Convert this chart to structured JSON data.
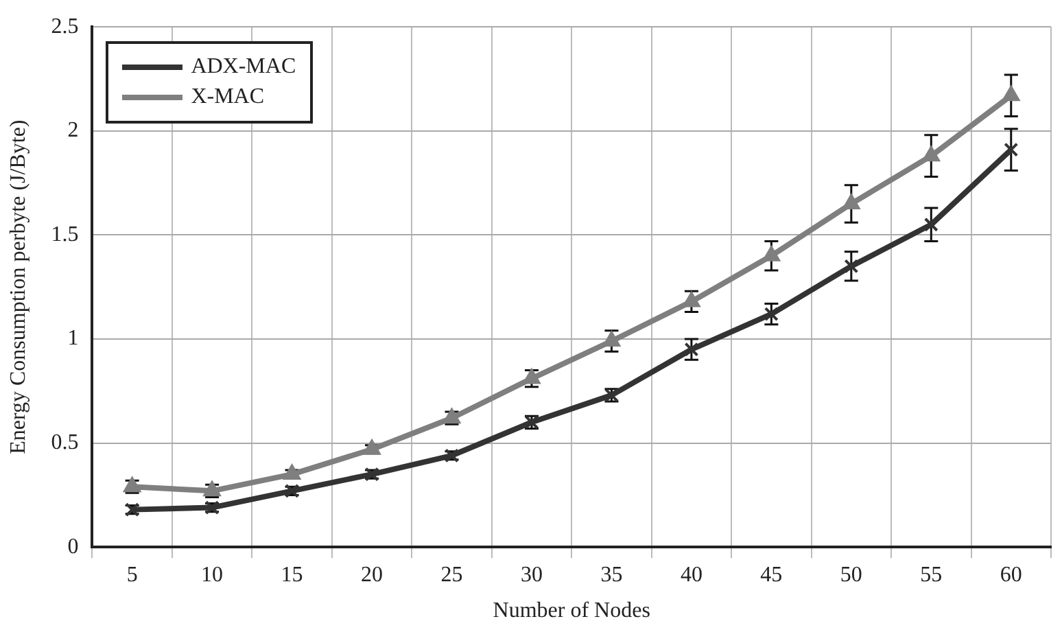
{
  "chart_data": {
    "type": "line",
    "xlabel": "Number of Nodes",
    "ylabel": "Energy Consumption perbyte (J/Byte)",
    "categories": [
      "5",
      "10",
      "15",
      "20",
      "25",
      "30",
      "35",
      "40",
      "45",
      "50",
      "55",
      "60"
    ],
    "series": [
      {
        "name": "ADX-MAC",
        "color": "#333333",
        "marker": "cross",
        "values": [
          0.18,
          0.19,
          0.27,
          0.35,
          0.44,
          0.6,
          0.73,
          0.95,
          1.12,
          1.35,
          1.55,
          1.91
        ],
        "errors": [
          0.02,
          0.02,
          0.02,
          0.02,
          0.02,
          0.03,
          0.03,
          0.05,
          0.05,
          0.07,
          0.08,
          0.1
        ]
      },
      {
        "name": "X-MAC",
        "color": "#7f7f7f",
        "marker": "triangle",
        "values": [
          0.29,
          0.27,
          0.35,
          0.47,
          0.62,
          0.81,
          0.99,
          1.18,
          1.4,
          1.65,
          1.88,
          2.17
        ],
        "errors": [
          0.03,
          0.03,
          0.02,
          0.02,
          0.03,
          0.04,
          0.05,
          0.05,
          0.07,
          0.09,
          0.1,
          0.1
        ]
      }
    ],
    "ylim": [
      0,
      2.5
    ],
    "yticks": [
      0,
      0.5,
      1,
      1.5,
      2,
      2.5
    ],
    "grid": true,
    "legend": "top left"
  }
}
